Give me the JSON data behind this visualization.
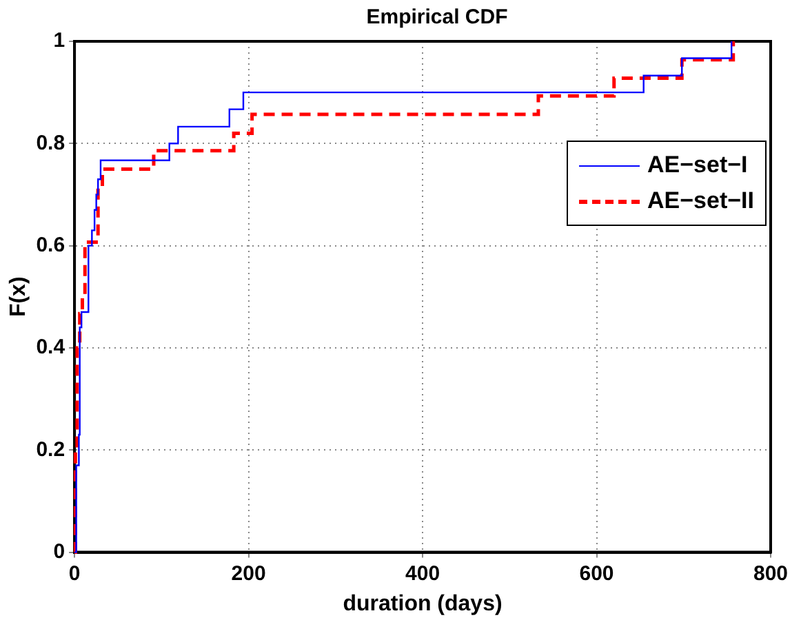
{
  "chart_data": {
    "type": "step",
    "title": "Empirical CDF",
    "xlabel": "duration (days)",
    "ylabel": "F(x)",
    "xlim": [
      0,
      800
    ],
    "xticks": [
      0,
      200,
      400,
      600,
      800
    ],
    "ylim": [
      0,
      1
    ],
    "yticks": [
      0,
      0.2,
      0.4,
      0.6,
      0.8,
      1
    ],
    "grid": true,
    "legend": "right",
    "series": [
      {
        "name": "AE−set−I",
        "color": "#0000ff",
        "line_style": "solid",
        "x": [
          0,
          2,
          5,
          6,
          8,
          16,
          20,
          23,
          25,
          27,
          30,
          109,
          119,
          178,
          194,
          654,
          698,
          755
        ],
        "values": [
          0,
          0.17,
          0.23,
          0.44,
          0.47,
          0.6,
          0.63,
          0.67,
          0.7,
          0.73,
          0.767,
          0.8,
          0.833,
          0.867,
          0.9,
          0.933,
          0.967,
          1
        ]
      },
      {
        "name": "AE−set−II",
        "color": "#ff0000",
        "line_style": "dashed",
        "x": [
          0,
          1,
          3,
          6,
          9,
          12,
          27,
          32,
          91,
          183,
          204,
          533,
          620,
          698,
          757
        ],
        "values": [
          0,
          0.2,
          0.4,
          0.467,
          0.5,
          0.607,
          0.713,
          0.75,
          0.786,
          0.82,
          0.857,
          0.893,
          0.928,
          0.964,
          1
        ]
      }
    ]
  }
}
